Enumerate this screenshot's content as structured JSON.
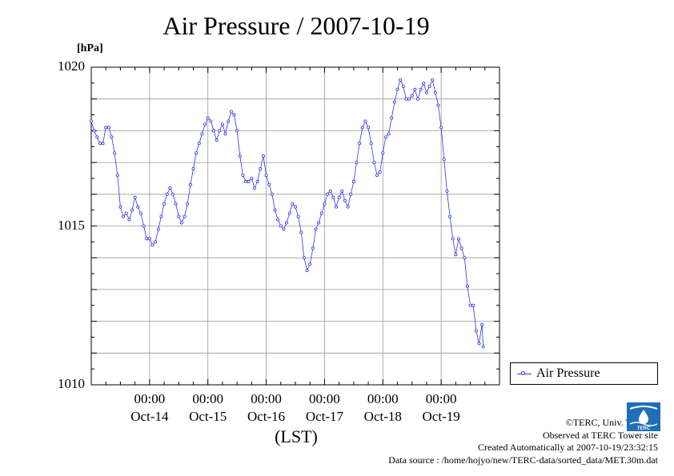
{
  "chart_data": {
    "type": "line",
    "title": "Air Pressure / 2007-10-19",
    "unit_label": "[hPa]",
    "xlabel": "(LST)",
    "ylabel": "",
    "ylim": [
      1010,
      1020
    ],
    "y_ticks": [
      "1010",
      "1015",
      "1020"
    ],
    "x_start_day": 13.0,
    "x_end_day": 20.0,
    "x_ticks": [
      {
        "day": 14,
        "time": "00:00",
        "date": "Oct-14"
      },
      {
        "day": 15,
        "time": "00:00",
        "date": "Oct-15"
      },
      {
        "day": 16,
        "time": "00:00",
        "date": "Oct-16"
      },
      {
        "day": 17,
        "time": "00:00",
        "date": "Oct-17"
      },
      {
        "day": 18,
        "time": "00:00",
        "date": "Oct-18"
      },
      {
        "day": 19,
        "time": "00:00",
        "date": "Oct-19"
      }
    ],
    "grid": true,
    "legend_position": "bottom-right",
    "color": "#3333ee",
    "series": [
      {
        "name": "Air Pressure",
        "points": [
          [
            13.0,
            1018.3
          ],
          [
            13.05,
            1018.0
          ],
          [
            13.1,
            1017.8
          ],
          [
            13.15,
            1017.6
          ],
          [
            13.2,
            1017.6
          ],
          [
            13.25,
            1018.1
          ],
          [
            13.3,
            1018.1
          ],
          [
            13.35,
            1017.8
          ],
          [
            13.4,
            1017.3
          ],
          [
            13.45,
            1016.6
          ],
          [
            13.5,
            1015.6
          ],
          [
            13.55,
            1015.3
          ],
          [
            13.6,
            1015.4
          ],
          [
            13.65,
            1015.2
          ],
          [
            13.7,
            1015.5
          ],
          [
            13.75,
            1015.9
          ],
          [
            13.8,
            1015.6
          ],
          [
            13.85,
            1015.4
          ],
          [
            13.9,
            1015.0
          ],
          [
            13.95,
            1014.6
          ],
          [
            14.0,
            1014.6
          ],
          [
            14.05,
            1014.4
          ],
          [
            14.1,
            1014.5
          ],
          [
            14.15,
            1014.9
          ],
          [
            14.2,
            1015.3
          ],
          [
            14.25,
            1015.7
          ],
          [
            14.3,
            1016.0
          ],
          [
            14.35,
            1016.2
          ],
          [
            14.4,
            1016.0
          ],
          [
            14.45,
            1015.7
          ],
          [
            14.5,
            1015.3
          ],
          [
            14.55,
            1015.1
          ],
          [
            14.6,
            1015.3
          ],
          [
            14.65,
            1015.7
          ],
          [
            14.7,
            1016.3
          ],
          [
            14.75,
            1016.8
          ],
          [
            14.8,
            1017.3
          ],
          [
            14.85,
            1017.6
          ],
          [
            14.9,
            1017.9
          ],
          [
            14.95,
            1018.2
          ],
          [
            15.0,
            1018.4
          ],
          [
            15.05,
            1018.3
          ],
          [
            15.1,
            1018.0
          ],
          [
            15.15,
            1017.7
          ],
          [
            15.2,
            1018.0
          ],
          [
            15.25,
            1018.2
          ],
          [
            15.3,
            1017.9
          ],
          [
            15.35,
            1018.3
          ],
          [
            15.4,
            1018.6
          ],
          [
            15.45,
            1018.5
          ],
          [
            15.5,
            1018.0
          ],
          [
            15.55,
            1017.2
          ],
          [
            15.6,
            1016.6
          ],
          [
            15.65,
            1016.4
          ],
          [
            15.7,
            1016.4
          ],
          [
            15.75,
            1016.5
          ],
          [
            15.8,
            1016.2
          ],
          [
            15.85,
            1016.4
          ],
          [
            15.9,
            1016.8
          ],
          [
            15.95,
            1017.2
          ],
          [
            16.0,
            1016.6
          ],
          [
            16.05,
            1016.3
          ],
          [
            16.1,
            1016.0
          ],
          [
            16.15,
            1015.5
          ],
          [
            16.2,
            1015.2
          ],
          [
            16.25,
            1015.0
          ],
          [
            16.3,
            1014.9
          ],
          [
            16.35,
            1015.1
          ],
          [
            16.4,
            1015.4
          ],
          [
            16.45,
            1015.7
          ],
          [
            16.5,
            1015.6
          ],
          [
            16.55,
            1015.3
          ],
          [
            16.6,
            1014.8
          ],
          [
            16.65,
            1014.0
          ],
          [
            16.7,
            1013.6
          ],
          [
            16.75,
            1013.8
          ],
          [
            16.8,
            1014.3
          ],
          [
            16.85,
            1014.9
          ],
          [
            16.9,
            1015.1
          ],
          [
            16.95,
            1015.4
          ],
          [
            17.0,
            1015.7
          ],
          [
            17.05,
            1016.0
          ],
          [
            17.1,
            1016.1
          ],
          [
            17.15,
            1015.9
          ],
          [
            17.2,
            1015.6
          ],
          [
            17.25,
            1015.9
          ],
          [
            17.3,
            1016.1
          ],
          [
            17.35,
            1015.8
          ],
          [
            17.4,
            1015.6
          ],
          [
            17.45,
            1016.0
          ],
          [
            17.5,
            1016.4
          ],
          [
            17.55,
            1017.0
          ],
          [
            17.6,
            1017.6
          ],
          [
            17.65,
            1018.1
          ],
          [
            17.7,
            1018.3
          ],
          [
            17.75,
            1018.1
          ],
          [
            17.8,
            1017.6
          ],
          [
            17.85,
            1017.0
          ],
          [
            17.9,
            1016.6
          ],
          [
            17.95,
            1016.7
          ],
          [
            18.0,
            1017.3
          ],
          [
            18.05,
            1017.8
          ],
          [
            18.1,
            1017.9
          ],
          [
            18.15,
            1018.4
          ],
          [
            18.2,
            1018.9
          ],
          [
            18.25,
            1019.3
          ],
          [
            18.3,
            1019.6
          ],
          [
            18.35,
            1019.4
          ],
          [
            18.4,
            1019.0
          ],
          [
            18.45,
            1019.0
          ],
          [
            18.5,
            1019.1
          ],
          [
            18.55,
            1019.3
          ],
          [
            18.6,
            1019.0
          ],
          [
            18.65,
            1019.3
          ],
          [
            18.7,
            1019.5
          ],
          [
            18.75,
            1019.2
          ],
          [
            18.8,
            1019.4
          ],
          [
            18.85,
            1019.6
          ],
          [
            18.9,
            1019.2
          ],
          [
            18.95,
            1018.8
          ],
          [
            19.0,
            1018.1
          ],
          [
            19.05,
            1017.1
          ],
          [
            19.1,
            1016.1
          ],
          [
            19.15,
            1015.3
          ],
          [
            19.2,
            1014.6
          ],
          [
            19.25,
            1014.1
          ],
          [
            19.3,
            1014.6
          ],
          [
            19.35,
            1014.3
          ],
          [
            19.4,
            1014.0
          ],
          [
            19.45,
            1013.1
          ],
          [
            19.5,
            1012.5
          ],
          [
            19.55,
            1012.5
          ],
          [
            19.6,
            1011.7
          ],
          [
            19.65,
            1011.3
          ],
          [
            19.7,
            1011.9
          ],
          [
            19.72,
            1011.2
          ]
        ]
      }
    ]
  },
  "legend": {
    "label": "Air Pressure"
  },
  "credits": {
    "line1": "©TERC, Univ. Tsukuba",
    "line2": "Observed at TERC Tower site",
    "line3": "Created Automatically at 2007-10-19/23:32:15",
    "line4": "Data source : /home/hojyo/new/TERC-data/sorted_data/MET.30m.dat"
  },
  "logo": {
    "text": "TERC"
  }
}
